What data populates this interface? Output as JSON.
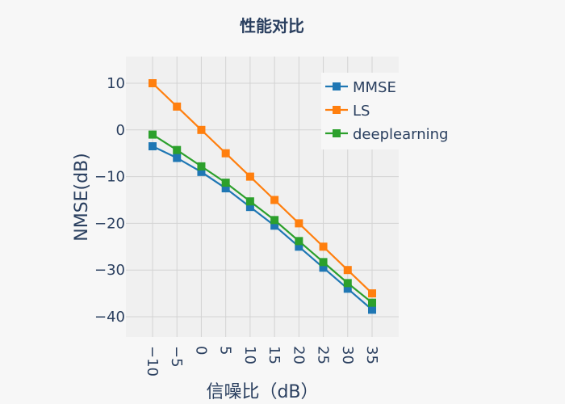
{
  "chart_data": {
    "type": "line",
    "title": "性能对比",
    "xlabel": "信噪比（dB）",
    "ylabel": "NMSE(dB)",
    "x": [
      -10,
      -5,
      0,
      5,
      10,
      15,
      20,
      25,
      30,
      35
    ],
    "x_tick_labels": [
      "−10",
      "−5",
      "0",
      "5",
      "10",
      "15",
      "20",
      "25",
      "30",
      "35"
    ],
    "y_ticks": [
      10,
      0,
      -10,
      -20,
      -30,
      -40
    ],
    "y_tick_labels": [
      "10",
      "0",
      "−10",
      "−20",
      "−30",
      "−40"
    ],
    "ylim": [
      -44,
      16
    ],
    "grid": true,
    "legend_position": "top-right",
    "series": [
      {
        "name": "MMSE",
        "color": "#1f77b4",
        "marker": "square",
        "values": [
          -3.5,
          -6.0,
          -9.0,
          -12.5,
          -16.5,
          -20.5,
          -25.0,
          -29.5,
          -34.0,
          -38.5
        ]
      },
      {
        "name": "LS",
        "color": "#ff7f0e",
        "marker": "square",
        "values": [
          10,
          5,
          0,
          -5,
          -10,
          -15,
          -20,
          -25,
          -30,
          -35
        ]
      },
      {
        "name": "deeplearning",
        "color": "#2ca02c",
        "marker": "square",
        "values": [
          -1.0,
          -4.3,
          -7.8,
          -11.3,
          -15.3,
          -19.3,
          -23.8,
          -28.3,
          -32.8,
          -37.0
        ]
      }
    ]
  }
}
